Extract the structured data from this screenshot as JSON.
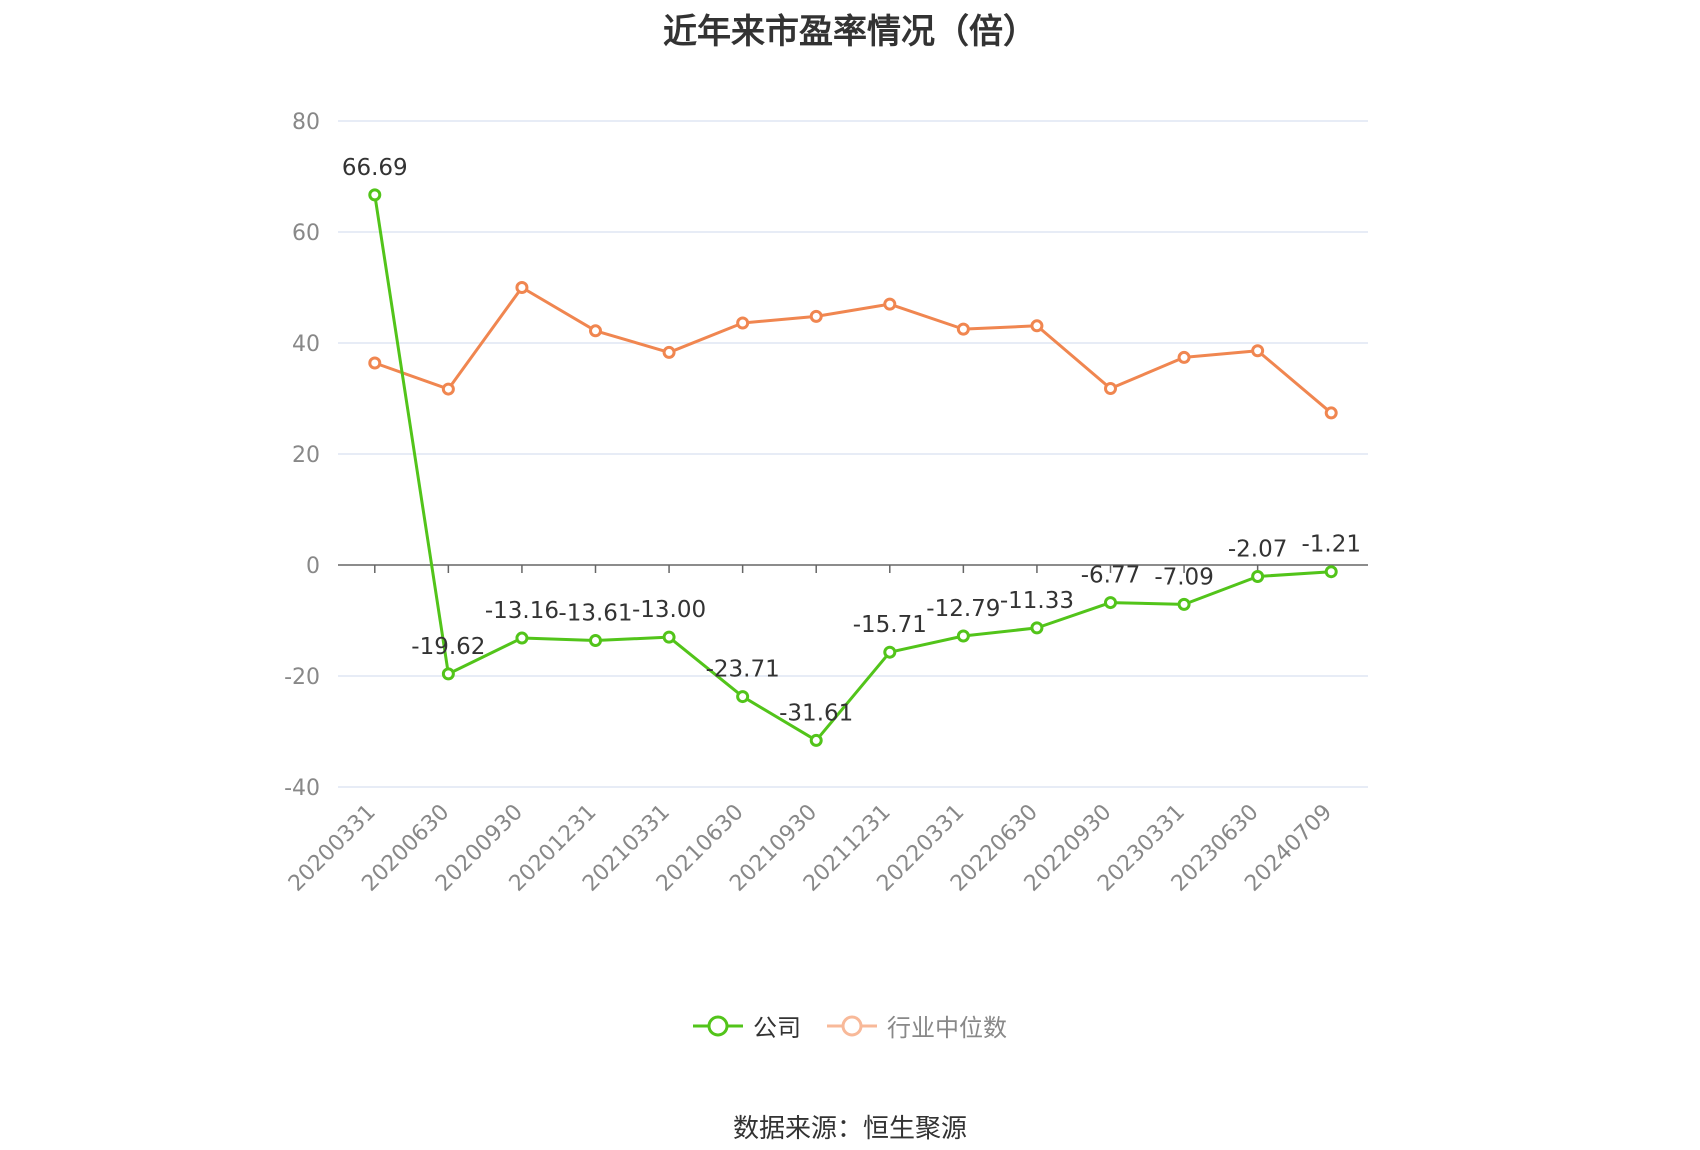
{
  "chart_data": {
    "type": "line",
    "title": "近年来市盈率情况（倍）",
    "categories": [
      "20200331",
      "20200630",
      "20200930",
      "20201231",
      "20210331",
      "20210630",
      "20210930",
      "20211231",
      "20220331",
      "20220630",
      "20220930",
      "20230331",
      "20230630",
      "20240709"
    ],
    "ylim": [
      -40,
      80
    ],
    "yticks": [
      -40,
      -20,
      0,
      20,
      40,
      60,
      80
    ],
    "grid": true,
    "legend_position": "bottom",
    "series": [
      {
        "name": "公司",
        "color": "#52c41a",
        "values": [
          66.69,
          -19.62,
          -13.16,
          -13.61,
          -13.0,
          -23.71,
          -31.61,
          -15.71,
          -12.79,
          -11.33,
          -6.77,
          -7.09,
          -2.07,
          -1.21
        ],
        "labels": [
          "66.69",
          "-19.62",
          "-13.16",
          "-13.61",
          "-13.00",
          "-23.71",
          "-31.61",
          "-15.71",
          "-12.79",
          "-11.33",
          "-6.77",
          "-7.09",
          "-2.07",
          "-1.21"
        ]
      },
      {
        "name": "行业中位数",
        "color": "#f08650",
        "values": [
          36.4,
          31.7,
          50.0,
          42.2,
          38.3,
          43.6,
          44.8,
          47.0,
          42.5,
          43.1,
          31.8,
          37.4,
          38.6,
          27.4
        ]
      }
    ],
    "source": "数据来源：恒生聚源"
  }
}
